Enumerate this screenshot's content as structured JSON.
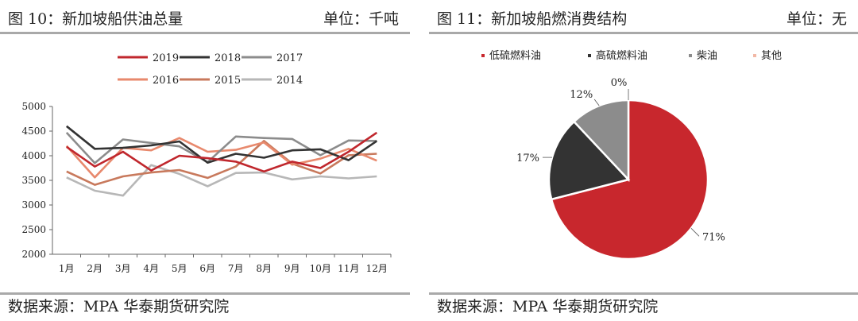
{
  "left": {
    "fig_label": "图 10：新加坡船供油总量",
    "unit": "单位：千吨",
    "source": "数据来源：MPA 华泰期货研究院"
  },
  "right": {
    "fig_label": "图 11：新加坡船燃消费结构",
    "unit": "单位：无",
    "source": "数据来源：MPA 华泰期货研究院"
  },
  "chart_data": [
    {
      "type": "line",
      "title": "新加坡船供油总量",
      "ylim": [
        2000,
        5000
      ],
      "yticks": [
        2000,
        2500,
        3000,
        3500,
        4000,
        4500,
        5000
      ],
      "categories": [
        "1月",
        "2月",
        "3月",
        "4月",
        "5月",
        "6月",
        "7月",
        "8月",
        "9月",
        "10月",
        "11月",
        "12月"
      ],
      "legend": "top",
      "series": [
        {
          "name": "2019",
          "color": "#c0272d",
          "values": [
            4180,
            3780,
            4080,
            3700,
            4000,
            3950,
            3880,
            3680,
            3880,
            3750,
            4080,
            4470
          ]
        },
        {
          "name": "2018",
          "color": "#333333",
          "values": [
            4600,
            4140,
            4160,
            4210,
            4290,
            3860,
            4040,
            3960,
            4110,
            4130,
            3910,
            4300
          ]
        },
        {
          "name": "2017",
          "color": "#8c8c8c",
          "values": [
            4470,
            3850,
            4330,
            4260,
            4190,
            3870,
            4390,
            4360,
            4340,
            4010,
            4310,
            4300
          ]
        },
        {
          "name": "2016",
          "color": "#e8896d",
          "values": [
            4200,
            3560,
            4160,
            4110,
            4360,
            4080,
            4120,
            4270,
            3820,
            3940,
            4140,
            3900
          ]
        },
        {
          "name": "2015",
          "color": "#c8795c",
          "values": [
            3680,
            3410,
            3580,
            3660,
            3710,
            3550,
            3780,
            4300,
            3840,
            3640,
            4010,
            4040
          ]
        },
        {
          "name": "2014",
          "color": "#b7b7b7",
          "values": [
            3560,
            3290,
            3190,
            3810,
            3630,
            3380,
            3650,
            3660,
            3520,
            3580,
            3540,
            3580
          ]
        }
      ]
    },
    {
      "type": "pie",
      "title": "新加坡船燃消费结构",
      "legend": "top",
      "slices": [
        {
          "name": "低硫燃料油",
          "value": 71,
          "label": "71%",
          "color": "#c8272d"
        },
        {
          "name": "高硫燃料油",
          "value": 17,
          "label": "17%",
          "color": "#333333"
        },
        {
          "name": "柴油",
          "value": 12,
          "label": "12%",
          "color": "#8c8c8c"
        },
        {
          "name": "其他",
          "value": 0,
          "label": "0%",
          "color": "#f2b8a6"
        }
      ]
    }
  ]
}
